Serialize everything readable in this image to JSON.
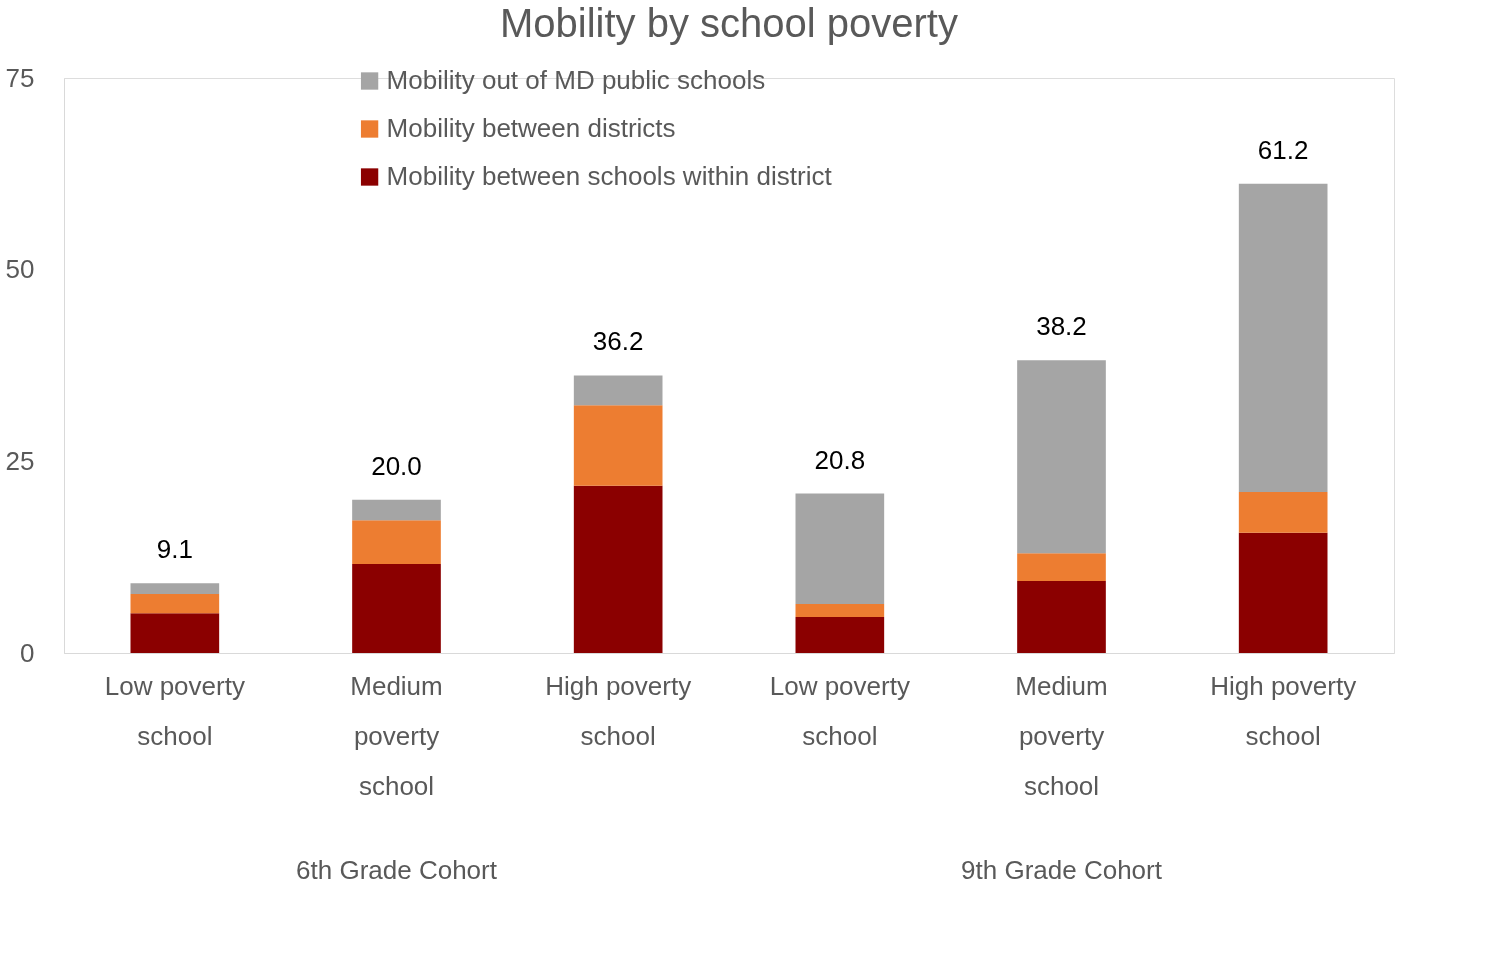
{
  "chart_data": {
    "type": "bar",
    "title": "Mobility by school poverty",
    "stacked": true,
    "categories": [
      "Low poverty school",
      "Medium poverty school",
      "High poverty school",
      "Low poverty school",
      "Medium poverty school",
      "High poverty school"
    ],
    "series": [
      {
        "name": "Mobility between schools within district",
        "color": "#8b0000",
        "values": [
          5.2,
          11.6,
          21.8,
          4.7,
          9.4,
          15.7
        ]
      },
      {
        "name": "Mobility between districts",
        "color": "#ed7d31",
        "values": [
          2.5,
          5.7,
          10.5,
          1.7,
          3.6,
          5.3
        ]
      },
      {
        "name": "Mobility out of MD public schools",
        "color": "#a5a5a5",
        "values": [
          1.4,
          2.7,
          3.9,
          14.4,
          25.2,
          40.2
        ]
      }
    ],
    "totals": [
      "9.1",
      "20.0",
      "36.2",
      "20.8",
      "38.2",
      "61.2"
    ],
    "ylim": [
      0,
      75
    ],
    "yticks": [
      0,
      25,
      50,
      75
    ],
    "grid": false,
    "legend": "top",
    "annotations": [
      "6th Grade Cohort",
      "9th Grade Cohort"
    ]
  }
}
